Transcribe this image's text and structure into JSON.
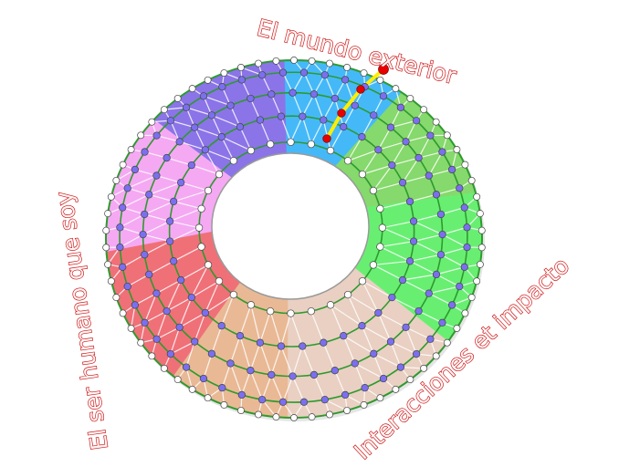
{
  "labels": {
    "top": "El mundo exterior",
    "left": "El ser humano que soy",
    "right": "Interacciones et impacto"
  },
  "colors": {
    "label": "#c80c0c",
    "ring_line": "#2e9a2e",
    "path": "#ffee00",
    "path_nodes": "#e80000",
    "inner_dots": "#7b6ff0",
    "sectors": [
      "#45b9f8",
      "#86d96c",
      "#68ef72",
      "#e9d0c2",
      "#e9b995",
      "#f07078",
      "#f5a9f3",
      "#8b74e8"
    ]
  }
}
